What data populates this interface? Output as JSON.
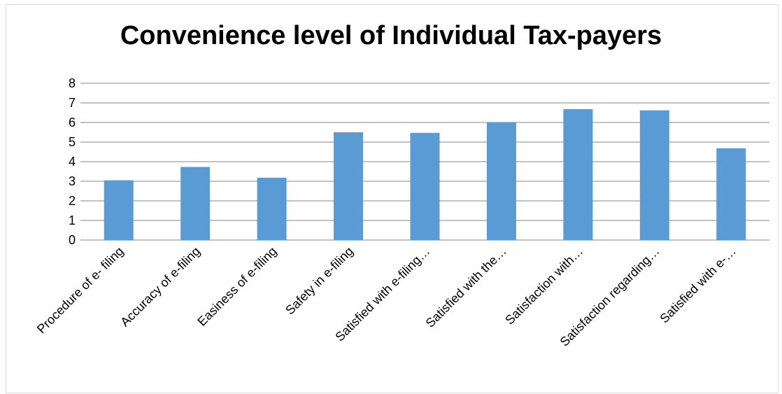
{
  "chart_data": {
    "type": "bar",
    "title": "Convenience level of Individual Tax-payers",
    "categories": [
      "Procedure of e- filing",
      "Accuracy of e-filing",
      "Easiness of e-filing",
      "Safety in e-filing",
      "Satisfied with e-filing…",
      "Satisfied with the…",
      "Satisfaction with…",
      "Satisfaction regarding…",
      "Satisfied with e-…"
    ],
    "values": [
      3.05,
      3.73,
      3.18,
      5.5,
      5.47,
      6.02,
      6.68,
      6.62,
      4.68
    ],
    "ylim": [
      0,
      8
    ],
    "yticks": [
      0,
      1,
      2,
      3,
      4,
      5,
      6,
      7,
      8
    ],
    "grid": true,
    "legend": "none",
    "bar_color": "#5b9bd5",
    "grid_color": "#868686"
  }
}
